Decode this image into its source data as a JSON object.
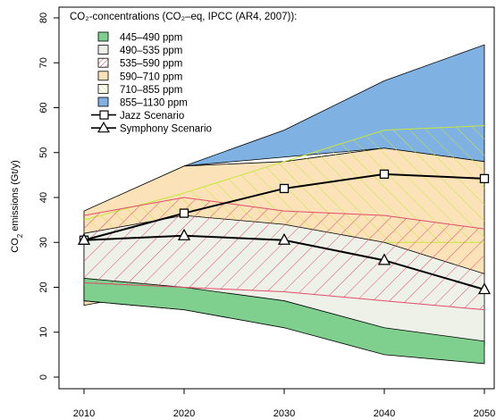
{
  "chart_data": {
    "type": "area",
    "legend_title": "CO₂-concentrations (CO₂–eq, IPCC (AR4, 2007)):",
    "legend_placement": "top-left",
    "ylabel": "CO₂ emissions (Gt/y)",
    "xlabel": "",
    "x_ticks": [
      2010,
      2020,
      2030,
      2040,
      2050
    ],
    "y_ticks": [
      0,
      10,
      20,
      30,
      40,
      50,
      60,
      70,
      80
    ],
    "xlim": [
      2010,
      2050
    ],
    "ylim": [
      0,
      80
    ],
    "grid": false,
    "bands": [
      {
        "name": "855–1130 ppm",
        "color": "#7fb1e3",
        "hatch": false,
        "x": [
          2020,
          2030,
          2040,
          2050
        ],
        "lower": [
          47,
          49,
          51,
          48
        ],
        "upper": [
          47,
          55,
          66,
          74
        ]
      },
      {
        "name": "590–710 ppm",
        "color": "#fbe2b8",
        "hatch": false,
        "x": [
          2010,
          2020,
          2030,
          2040,
          2050
        ],
        "lower": [
          16,
          20,
          26,
          29,
          23
        ],
        "upper": [
          37,
          47,
          48,
          51,
          48
        ]
      },
      {
        "name": "710–855 ppm",
        "color": "#c6e63c",
        "hatch": true,
        "x": [
          2010,
          2020,
          2030,
          2040,
          2050
        ],
        "lower": [
          24,
          27,
          29,
          30,
          30
        ],
        "upper": [
          35,
          41,
          48,
          55,
          56
        ]
      },
      {
        "name": "490–535 ppm",
        "color": "#eef1e8",
        "hatch": false,
        "x": [
          2010,
          2020,
          2030,
          2040,
          2050
        ],
        "lower": [
          17,
          15,
          11,
          9,
          7
        ],
        "upper": [
          32,
          36,
          34,
          30,
          23
        ]
      },
      {
        "name": "445–490 ppm",
        "color": "#7fcf8f",
        "hatch": false,
        "x": [
          2010,
          2020,
          2030,
          2040,
          2050
        ],
        "lower": [
          17,
          15,
          11,
          5,
          3
        ],
        "upper": [
          22,
          20,
          17,
          11,
          8
        ]
      },
      {
        "name": "535–590 ppm",
        "color": "#e04c6a",
        "hatch": true,
        "x": [
          2010,
          2020,
          2030,
          2040,
          2050
        ],
        "lower": [
          21,
          20,
          19,
          17,
          15
        ],
        "upper": [
          36,
          40,
          37,
          36,
          33
        ]
      }
    ],
    "legend_items": [
      {
        "label": "445–490 ppm",
        "kind": "fill",
        "color": "#7fcf8f",
        "hatch": false
      },
      {
        "label": "490–535 ppm",
        "kind": "fill",
        "color": "#eef1e8",
        "hatch": false
      },
      {
        "label": "535–590 ppm",
        "kind": "fill",
        "color": "#e04c6a",
        "hatch": true
      },
      {
        "label": "590–710 ppm",
        "kind": "fill",
        "color": "#fbe2b8",
        "hatch": false
      },
      {
        "label": "710–855 ppm",
        "kind": "fill",
        "color": "#c6e63c",
        "hatch": true
      },
      {
        "label": "855–1130 ppm",
        "kind": "fill",
        "color": "#7fb1e3",
        "hatch": false
      },
      {
        "label": "Jazz Scenario",
        "kind": "line",
        "marker": "square"
      },
      {
        "label": "Symphony Scenario",
        "kind": "line",
        "marker": "triangle"
      }
    ],
    "series": [
      {
        "name": "Jazz Scenario",
        "marker": "square",
        "x": [
          2010,
          2020,
          2030,
          2040,
          2050
        ],
        "y": [
          30.5,
          36.5,
          42,
          45.2,
          44.2
        ]
      },
      {
        "name": "Symphony Scenario",
        "marker": "triangle",
        "x": [
          2010,
          2020,
          2030,
          2040,
          2050
        ],
        "y": [
          30.5,
          31.5,
          30.5,
          26,
          19.5
        ]
      }
    ]
  }
}
